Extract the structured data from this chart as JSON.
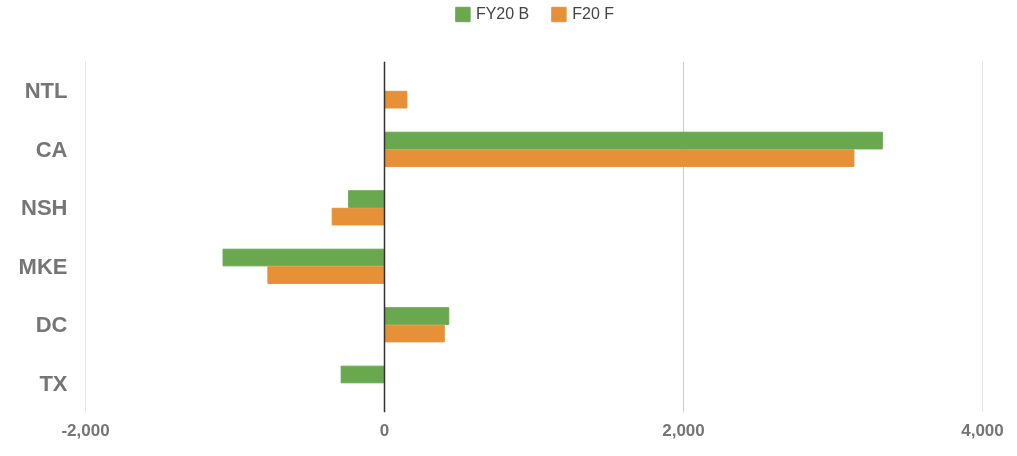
{
  "chart_data": {
    "type": "bar",
    "orientation": "horizontal",
    "categories": [
      "NTL",
      "CA",
      "NSH",
      "MKE",
      "DC",
      "TX"
    ],
    "series": [
      {
        "name": "FY20 B",
        "color": "#6aa84f",
        "values": [
          null,
          3330,
          -240,
          -1080,
          430,
          -290
        ]
      },
      {
        "name": "F20 F",
        "color": "#e69138",
        "values": [
          150,
          3140,
          -350,
          -780,
          400,
          null
        ]
      }
    ],
    "xlim": [
      -2000,
      4000
    ],
    "xticks": [
      {
        "value": -2000,
        "label": "-2,000"
      },
      0,
      {
        "value": 2000,
        "label": "2,000"
      },
      {
        "value": 4000,
        "label": "4,000"
      }
    ],
    "grid": "x",
    "legend": "top",
    "ref_lines": [
      {
        "axis": "x",
        "value": 0,
        "color": "#333333"
      }
    ]
  }
}
